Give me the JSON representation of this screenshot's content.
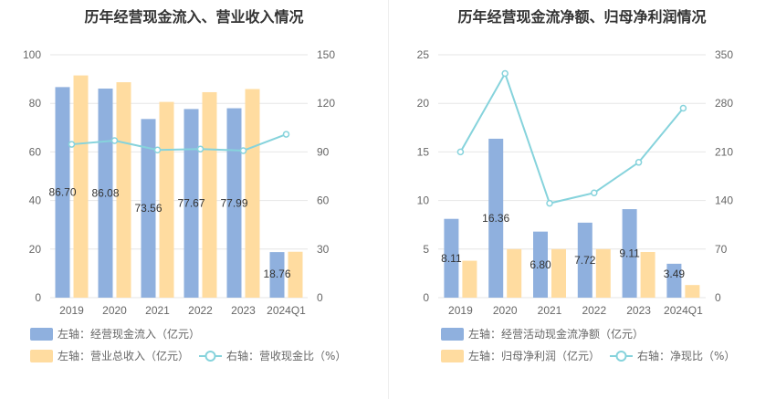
{
  "colors": {
    "bar_primary": "#8FB0DE",
    "bar_secondary": "#FFDCA0",
    "line": "#86D3DC",
    "grid": "#E6E6E6",
    "axis_text": "#666666"
  },
  "chart_data": [
    {
      "type": "bar",
      "title": "历年经营现金流入、营业收入情况",
      "categories": [
        "2019",
        "2020",
        "2021",
        "2022",
        "2023",
        "2024Q1"
      ],
      "left_axis": {
        "ticks": [
          "0",
          "20",
          "40",
          "60",
          "80",
          "100"
        ],
        "ylim": [
          0,
          100
        ]
      },
      "right_axis": {
        "ticks": [
          "0",
          "30",
          "60",
          "90",
          "120",
          "150"
        ],
        "ylim": [
          0,
          150
        ]
      },
      "series": [
        {
          "name": "左轴：经营现金流入（亿元）",
          "type": "bar",
          "axis": "left",
          "values": [
            86.7,
            86.08,
            73.56,
            77.67,
            77.99,
            18.76
          ],
          "labels": [
            "86.70",
            "86.08",
            "73.56",
            "77.67",
            "77.99",
            "18.76"
          ]
        },
        {
          "name": "左轴：营业总收入（亿元）",
          "type": "bar",
          "axis": "left",
          "values": [
            91.5,
            88.7,
            80.6,
            84.6,
            85.9,
            18.9
          ]
        },
        {
          "name": "右轴：营收现金比（%）",
          "type": "line",
          "axis": "right",
          "values": [
            94.7,
            97.0,
            91.2,
            91.8,
            90.8,
            100.9
          ]
        }
      ],
      "legend": [
        "左轴：经营现金流入（亿元）",
        "左轴：营业总收入（亿元）",
        "右轴：营收现金比（%）"
      ]
    },
    {
      "type": "bar",
      "title": "历年经营现金流净额、归母净利润情况",
      "categories": [
        "2019",
        "2020",
        "2021",
        "2022",
        "2023",
        "2024Q1"
      ],
      "left_axis": {
        "ticks": [
          "0",
          "5",
          "10",
          "15",
          "20",
          "25"
        ],
        "ylim": [
          0,
          25
        ]
      },
      "right_axis": {
        "ticks": [
          "0",
          "70",
          "140",
          "210",
          "280",
          "350"
        ],
        "ylim": [
          0,
          350
        ]
      },
      "series": [
        {
          "name": "左轴：经营活动现金流净额（亿元）",
          "type": "bar",
          "axis": "left",
          "values": [
            8.11,
            16.36,
            6.8,
            7.72,
            9.11,
            3.49
          ],
          "labels": [
            "8.11",
            "16.36",
            "6.80",
            "7.72",
            "9.11",
            "3.49"
          ]
        },
        {
          "name": "左轴：归母净利润（亿元）",
          "type": "bar",
          "axis": "left",
          "values": [
            3.8,
            5.0,
            5.0,
            5.0,
            4.7,
            1.3
          ]
        },
        {
          "name": "右轴：净现比（%）",
          "type": "line",
          "axis": "right",
          "values": [
            210,
            323,
            136,
            151,
            195,
            273
          ]
        }
      ],
      "legend": [
        "左轴：经营活动现金流净额（亿元）",
        "左轴：归母净利润（亿元）",
        "右轴：净现比（%）"
      ]
    }
  ]
}
